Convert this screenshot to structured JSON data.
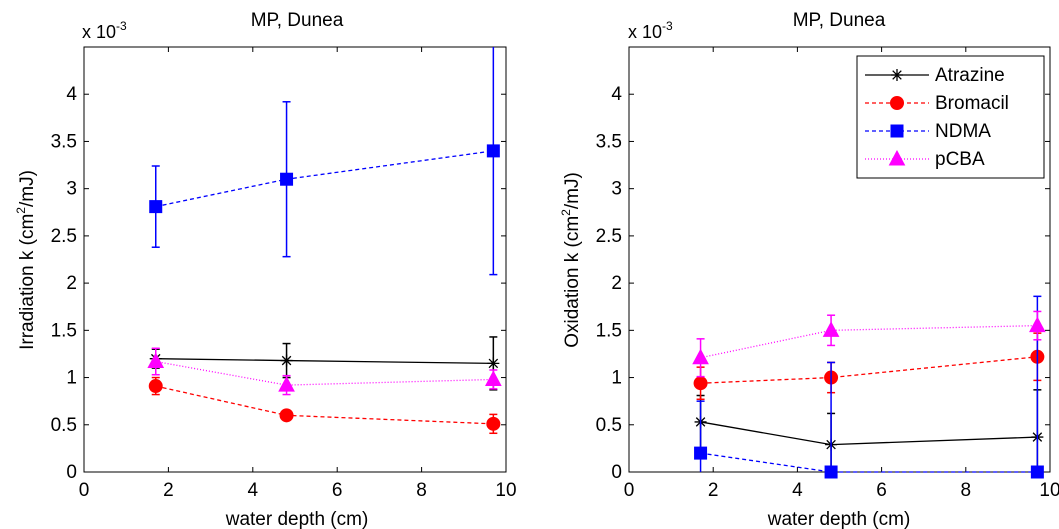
{
  "chart_data": [
    {
      "type": "line",
      "title": "MP, Dunea",
      "xlabel": "water depth (cm)",
      "ylabel_prefix": "Irradiation k (cm",
      "ylabel_sup": "2",
      "ylabel_suffix": "/mJ)",
      "scale_base": "x 10",
      "scale_exp": "-3",
      "xlim": [
        0,
        10
      ],
      "ylim": [
        0,
        4.5
      ],
      "xticks": [
        0,
        2,
        4,
        6,
        8,
        10
      ],
      "yticks": [
        0,
        0.5,
        1,
        1.5,
        2,
        2.5,
        3,
        3.5,
        4
      ],
      "x": [
        1.7,
        4.8,
        9.7
      ],
      "series": [
        {
          "key": "atrazine",
          "values": [
            1.2,
            1.18,
            1.15
          ],
          "err": [
            0.1,
            0.18,
            0.28
          ],
          "color": "#000000",
          "marker": "star",
          "dash": "none"
        },
        {
          "key": "bromacil",
          "values": [
            0.91,
            0.6,
            0.51
          ],
          "err": [
            0.09,
            0.04,
            0.1
          ],
          "color": "#ff0000",
          "marker": "circle",
          "dash": "4,3"
        },
        {
          "key": "ndma",
          "values": [
            2.81,
            3.1,
            3.4
          ],
          "err": [
            0.43,
            0.82,
            1.31
          ],
          "color": "#0000ff",
          "marker": "square",
          "dash": "4,3"
        },
        {
          "key": "pcba",
          "values": [
            1.17,
            0.92,
            0.98
          ],
          "err": [
            0.14,
            0.1,
            0.1
          ],
          "color": "#ff00ff",
          "marker": "triangle",
          "dash": "1,2"
        }
      ]
    },
    {
      "type": "line",
      "title": "MP, Dunea",
      "xlabel": "water depth (cm)",
      "ylabel_prefix": "Oxidation k (cm",
      "ylabel_sup": "2",
      "ylabel_suffix": "/mJ)",
      "scale_base": "x 10",
      "scale_exp": "-3",
      "xlim": [
        0,
        10
      ],
      "ylim": [
        0,
        4.5
      ],
      "xticks": [
        0,
        2,
        4,
        6,
        8,
        10
      ],
      "yticks": [
        0,
        0.5,
        1,
        1.5,
        2,
        2.5,
        3,
        3.5,
        4
      ],
      "x": [
        1.7,
        4.8,
        9.7
      ],
      "legend_position": "top-right",
      "legend": [
        "Atrazine",
        "Bromacil",
        "NDMA",
        "pCBA"
      ],
      "series": [
        {
          "key": "atrazine",
          "name": "Atrazine",
          "values": [
            0.53,
            0.29,
            0.37
          ],
          "err": [
            0.28,
            0.33,
            0.5
          ],
          "color": "#000000",
          "marker": "star",
          "dash": "none"
        },
        {
          "key": "bromacil",
          "name": "Bromacil",
          "values": [
            0.94,
            1.0,
            1.22
          ],
          "err": [
            0.17,
            0.16,
            0.25
          ],
          "color": "#ff0000",
          "marker": "circle",
          "dash": "4,3"
        },
        {
          "key": "ndma",
          "name": "NDMA",
          "values": [
            0.2,
            0.0,
            0.0
          ],
          "err": [
            0.55,
            1.16,
            1.86
          ],
          "color": "#0000ff",
          "marker": "square",
          "dash": "4,3"
        },
        {
          "key": "pcba",
          "name": "pCBA",
          "values": [
            1.21,
            1.5,
            1.55
          ],
          "err": [
            0.2,
            0.16,
            0.15
          ],
          "color": "#ff00ff",
          "marker": "triangle",
          "dash": "1,2"
        }
      ]
    }
  ]
}
